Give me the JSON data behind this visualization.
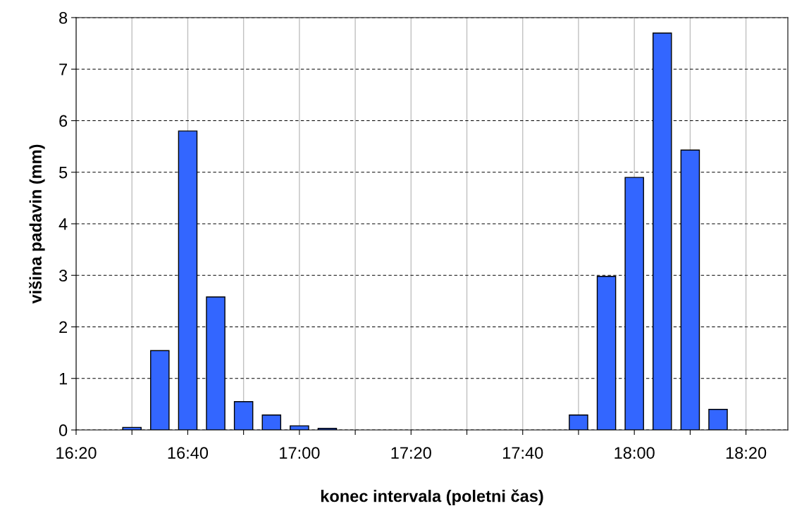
{
  "chart_data": {
    "type": "bar",
    "xlabel": "konec intervala (poletni čas)",
    "ylabel": "višina padavin (mm)",
    "x": [
      16.5,
      16.5833,
      16.6667,
      16.75,
      16.8333,
      16.9167,
      17.0,
      17.0833,
      17.8333,
      17.9167,
      18.0,
      18.0833,
      18.1667,
      18.25
    ],
    "values": [
      0.05,
      1.54,
      5.8,
      2.58,
      0.55,
      0.29,
      0.08,
      0.03,
      0.29,
      2.98,
      4.9,
      7.7,
      5.43,
      0.4
    ],
    "color": "#3366ff",
    "xlim": [
      16.3333,
      18.4583
    ],
    "xticks": [
      {
        "value": 16.3333,
        "label": "16:20"
      },
      {
        "value": 16.5,
        "label": null
      },
      {
        "value": 16.6667,
        "label": "16:40"
      },
      {
        "value": 16.8333,
        "label": null
      },
      {
        "value": 17.0,
        "label": "17:00"
      },
      {
        "value": 17.1667,
        "label": null
      },
      {
        "value": 17.3333,
        "label": "17:20"
      },
      {
        "value": 17.5,
        "label": null
      },
      {
        "value": 17.6667,
        "label": "17:40"
      },
      {
        "value": 17.8333,
        "label": null
      },
      {
        "value": 18.0,
        "label": "18:00"
      },
      {
        "value": 18.1667,
        "label": null
      },
      {
        "value": 18.3333,
        "label": "18:20"
      }
    ],
    "ylim": [
      0,
      8
    ],
    "yticks": [
      0,
      1,
      2,
      3,
      4,
      5,
      6,
      7,
      8
    ],
    "grid": true
  }
}
